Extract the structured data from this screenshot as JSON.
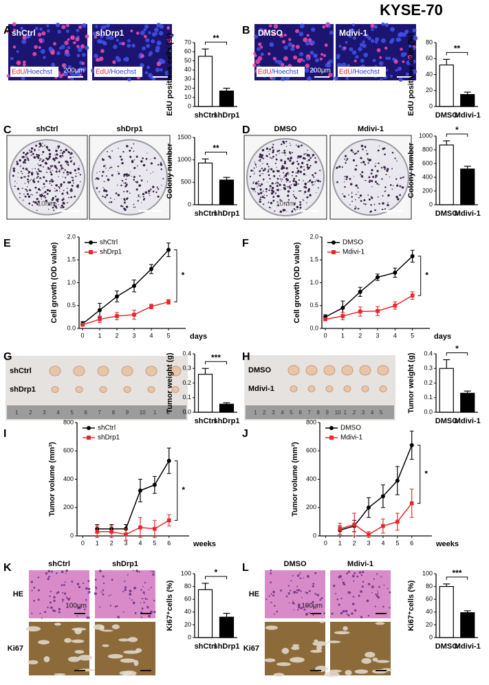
{
  "title": "KYSE-70",
  "image_panels": [
    {
      "images": [
        {
          "label": "shCtrl",
          "stain": [
            "EdU",
            "/Hoechst"
          ],
          "scale": "200μm"
        },
        {
          "label": "shDrp1",
          "stain": [
            "EdU",
            "/Hoechst"
          ]
        }
      ]
    },
    {
      "images": [
        {
          "label": "DMSO",
          "stain": [
            "EdU",
            "/Hoechst"
          ],
          "scale": "200μm"
        },
        {
          "label": "Mdivi-1",
          "stain": [
            "EdU",
            "/Hoechst"
          ]
        }
      ]
    },
    {
      "images": [
        {
          "title": "shCtrl",
          "scale": "10mm"
        },
        {
          "title": "shDrp1"
        }
      ]
    },
    {
      "images": [
        {
          "title": "DMSO",
          "scale": "10mm"
        },
        {
          "title": "Mdivi-1"
        }
      ]
    },
    {
      "labels": [
        "shCtrl",
        "shDrp1"
      ],
      "ruler": [
        "1",
        "2",
        "3",
        "4",
        "5",
        "6",
        "7",
        "8",
        "9",
        "10",
        "1",
        "2"
      ]
    },
    {
      "labels": [
        "DMSO",
        "Mdivi-1"
      ],
      "ruler": [
        "1",
        "2",
        "3",
        "4",
        "5",
        "6",
        "7",
        "8",
        "9",
        "10",
        "1",
        "2",
        "3",
        "4",
        "5"
      ]
    },
    {
      "columns": [
        "shCtrl",
        "shDrp1"
      ],
      "rows": [
        "HE",
        "Ki67"
      ],
      "scale": "100μm"
    },
    {
      "columns": [
        "DMSO",
        "Mdivi-1"
      ],
      "rows": [
        "HE",
        "Ki67"
      ],
      "scale": "100μm"
    }
  ],
  "chart_data": [
    {
      "type": "bar",
      "panel": "A",
      "ylabel": "EdU positives cells (%)",
      "categories": [
        "shCtrl",
        "shDrp1"
      ],
      "values": [
        55,
        17
      ],
      "errors": [
        8,
        3
      ],
      "colors": [
        "#ffffff",
        "#000000"
      ],
      "ylim": [
        0,
        70
      ],
      "yticks": [
        0,
        10,
        20,
        30,
        40,
        50,
        60,
        70
      ],
      "significance": "**"
    },
    {
      "type": "bar",
      "panel": "B",
      "ylabel": "EdU positives cells (%)",
      "categories": [
        "DMSO",
        "Mdivi-1"
      ],
      "values": [
        52,
        15
      ],
      "errors": [
        7,
        3
      ],
      "colors": [
        "#ffffff",
        "#000000"
      ],
      "ylim": [
        0,
        80
      ],
      "yticks": [
        0,
        20,
        40,
        60,
        80
      ],
      "significance": "**"
    },
    {
      "type": "bar",
      "panel": "C",
      "ylabel": "Colony number",
      "categories": [
        "shCtrl",
        "shDrp1"
      ],
      "values": [
        930,
        550
      ],
      "errors": [
        90,
        60
      ],
      "colors": [
        "#ffffff",
        "#000000"
      ],
      "ylim": [
        0,
        1500
      ],
      "yticks": [
        0,
        500,
        1000,
        1500
      ],
      "significance": "**"
    },
    {
      "type": "bar",
      "panel": "D",
      "ylabel": "Colony number",
      "categories": [
        "DMSO",
        "Mdivi-1"
      ],
      "values": [
        870,
        520
      ],
      "errors": [
        60,
        40
      ],
      "colors": [
        "#ffffff",
        "#000000"
      ],
      "ylim": [
        0,
        1000
      ],
      "yticks": [
        0,
        200,
        400,
        600,
        800,
        1000
      ],
      "significance": "*"
    },
    {
      "type": "line",
      "panel": "E",
      "ylabel": "Cell growth (OD value)",
      "xlabel": "days",
      "x": [
        0,
        1,
        2,
        3,
        4,
        5
      ],
      "xlim": [
        -0.2,
        6
      ],
      "xticks": [
        0,
        1,
        2,
        3,
        4,
        5
      ],
      "ylim": [
        0,
        2
      ],
      "yticks": [
        {
          "value": 0,
          "label": "0.0"
        },
        0.5,
        {
          "value": 1,
          "label": "1.0"
        },
        1.5,
        {
          "value": 2,
          "label": "2.0"
        }
      ],
      "significance": "*",
      "series": [
        {
          "name": "shCtrl",
          "color": "#000000",
          "marker": "circle",
          "values": [
            0.1,
            0.4,
            0.7,
            0.93,
            1.3,
            1.72
          ],
          "errors": [
            0.05,
            0.15,
            0.12,
            0.13,
            0.1,
            0.15
          ]
        },
        {
          "name": "shDrp1",
          "color": "#e8262a",
          "marker": "square",
          "values": [
            0.08,
            0.2,
            0.27,
            0.3,
            0.48,
            0.58
          ],
          "errors": [
            0.03,
            0.07,
            0.08,
            0.1,
            0.05,
            0.05
          ]
        }
      ]
    },
    {
      "type": "line",
      "panel": "F",
      "ylabel": "Cell growth (OD value)",
      "xlabel": "days",
      "x": [
        0,
        1,
        2,
        3,
        4,
        5
      ],
      "xlim": [
        -0.2,
        6
      ],
      "xticks": [
        0,
        1,
        2,
        3,
        4,
        5
      ],
      "ylim": [
        0,
        2
      ],
      "yticks": [
        {
          "value": 0,
          "label": "0.0"
        },
        0.5,
        {
          "value": 1,
          "label": "1.0"
        },
        1.5,
        {
          "value": 2,
          "label": "2.0"
        }
      ],
      "significance": "*",
      "series": [
        {
          "name": "DMSO",
          "color": "#000000",
          "marker": "circle",
          "values": [
            0.25,
            0.45,
            0.8,
            1.12,
            1.22,
            1.58
          ],
          "errors": [
            0.05,
            0.15,
            0.1,
            0.07,
            0.1,
            0.13
          ]
        },
        {
          "name": "Mdivi-1",
          "color": "#e8262a",
          "marker": "square",
          "values": [
            0.2,
            0.27,
            0.37,
            0.38,
            0.5,
            0.72
          ],
          "errors": [
            0.03,
            0.08,
            0.1,
            0.1,
            0.08,
            0.08
          ]
        }
      ]
    },
    {
      "type": "bar",
      "panel": "G",
      "ylabel": "Tumor weight (g)",
      "categories": [
        "shCtrl",
        "shDrp1"
      ],
      "values": [
        0.26,
        0.055
      ],
      "errors": [
        0.04,
        0.01
      ],
      "colors": [
        "#ffffff",
        "#000000"
      ],
      "ylim": [
        0,
        0.4
      ],
      "yticks": [
        {
          "value": 0,
          "label": "0.0"
        },
        0.1,
        0.2,
        0.3,
        0.4
      ],
      "significance": "***"
    },
    {
      "type": "bar",
      "panel": "H",
      "ylabel": "Tumor weight (g)",
      "categories": [
        "DMSO",
        "Mdivi-1"
      ],
      "values": [
        0.3,
        0.13
      ],
      "errors": [
        0.06,
        0.015
      ],
      "colors": [
        "#ffffff",
        "#000000"
      ],
      "ylim": [
        0,
        0.4
      ],
      "yticks": [
        {
          "value": 0,
          "label": "0.0"
        },
        0.1,
        0.2,
        0.3,
        0.4
      ],
      "significance": "*"
    },
    {
      "type": "line",
      "panel": "I",
      "ylabel": "Tumor volume (mm³)",
      "xlabel": "weeks",
      "x": [
        1,
        2,
        3,
        4,
        5,
        6
      ],
      "xlim": [
        -0.4,
        7.4
      ],
      "xticks": [
        0,
        1,
        2,
        3,
        4,
        5,
        6
      ],
      "ylim": [
        0,
        800
      ],
      "yticks": [
        0,
        200,
        400,
        600,
        800
      ],
      "significance": "*",
      "series": [
        {
          "name": "shCtrl",
          "color": "#000000",
          "marker": "circle",
          "values": [
            50,
            50,
            50,
            320,
            360,
            530
          ],
          "errors": [
            30,
            30,
            30,
            80,
            60,
            90
          ]
        },
        {
          "name": "shDrp1",
          "color": "#e8262a",
          "marker": "square",
          "values": [
            30,
            30,
            10,
            60,
            50,
            110
          ],
          "errors": [
            40,
            40,
            40,
            70,
            60,
            40
          ]
        }
      ]
    },
    {
      "type": "line",
      "panel": "J",
      "ylabel": "Tumor volume (mm³)",
      "xlabel": "weeks",
      "x": [
        1,
        2,
        3,
        4,
        5,
        6
      ],
      "xlim": [
        -0.4,
        7.4
      ],
      "xticks": [
        0,
        1,
        2,
        3,
        4,
        5,
        6
      ],
      "ylim": [
        0,
        800
      ],
      "yticks": [
        0,
        200,
        400,
        600,
        800
      ],
      "significance": "*",
      "series": [
        {
          "name": "DMSO",
          "color": "#000000",
          "marker": "circle",
          "values": [
            40,
            70,
            200,
            280,
            390,
            640
          ],
          "errors": [
            30,
            40,
            70,
            80,
            100,
            100
          ]
        },
        {
          "name": "Mdivi-1",
          "color": "#e8262a",
          "marker": "square",
          "values": [
            50,
            80,
            10,
            70,
            100,
            230
          ],
          "errors": [
            40,
            80,
            20,
            50,
            60,
            100
          ]
        }
      ]
    },
    {
      "type": "bar",
      "panel": "K",
      "ylabel": "Ki67⁺cells (%)",
      "categories": [
        "shCtrl",
        "shDrp1"
      ],
      "values": [
        75,
        32
      ],
      "errors": [
        10,
        6
      ],
      "colors": [
        "#ffffff",
        "#000000"
      ],
      "ylim": [
        0,
        100
      ],
      "yticks": [
        0,
        20,
        40,
        60,
        80,
        100
      ],
      "significance": "*"
    },
    {
      "type": "bar",
      "panel": "L",
      "ylabel": "Ki67⁺cells (%)",
      "categories": [
        "DMSO",
        "Mdivi-1"
      ],
      "values": [
        80,
        39
      ],
      "errors": [
        4,
        3
      ],
      "colors": [
        "#ffffff",
        "#000000"
      ],
      "ylim": [
        0,
        100
      ],
      "yticks": [
        0,
        20,
        40,
        60,
        80,
        100
      ],
      "significance": "***"
    }
  ]
}
